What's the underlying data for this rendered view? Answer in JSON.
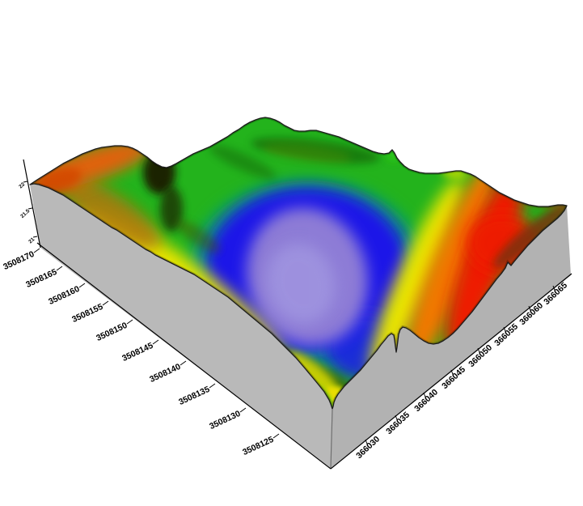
{
  "figure": {
    "background": "#ffffff",
    "title": ""
  },
  "chart_data": {
    "type": "surface",
    "subtype": "3d-terrain-block",
    "title": "",
    "xlabel": "",
    "ylabel": "",
    "zlabel": "",
    "x_axis": {
      "side": "bottom-right",
      "ticks": [
        "366030",
        "366035",
        "366040",
        "366045",
        "366050",
        "366055",
        "366060",
        "366065"
      ],
      "range": [
        366028,
        366067
      ]
    },
    "y_axis": {
      "side": "bottom-left",
      "ticks": [
        "3508170",
        "3508165",
        "3508160",
        "3508155",
        "3508150",
        "3508145",
        "3508140",
        "3508135",
        "3508130",
        "3508125"
      ],
      "range": [
        3508122,
        3508171
      ]
    },
    "z_axis": {
      "side": "upper-left-vertical",
      "ticks": [
        "22",
        "21.5",
        "21"
      ]
    },
    "colormap_low_to_high": [
      "#8d7cd6",
      "#1a15e8",
      "#0c9a78",
      "#23b31c",
      "#e8e400",
      "#f07800",
      "#ee1c00",
      "#7a3210"
    ],
    "grid": false,
    "legend": null,
    "surface_description": "Topographic 3D surface block: a central closed depression (lavender/purple lowest, ringed by deep blue) opening toward the south rim; green mid elevations across the north ridge; yellow-orange-red high ground along the northwest corner and the entire east rim; dark shaded knolls near the northwest; gray vertical walls on the visible west and south faces"
  },
  "palette": {
    "background": "#ffffff",
    "wall_west": "#b9b9b9",
    "wall_south": "#b2b2b2",
    "wall_edge": "#6f6f6f",
    "axis": "#000000",
    "outline": "#1c1c1c",
    "green_base": "#23b31c",
    "teal": "#0c9a78",
    "blue": "#1a15e8",
    "blue_drain": "#1c20e4",
    "purple": "#8d7cd6",
    "purple_light": "#a095e0",
    "yellow": "#e8e400",
    "yellow_bright": "#eede00",
    "yellow_green": "#c6dc00",
    "green_bright": "#2ecc12",
    "ochre": "#b07608",
    "orange": "#f07800",
    "orange_nw": "#e06208",
    "red_orange": "#d34a04",
    "red": "#ee1c00",
    "brown_rim": "#7a3210",
    "brown_sky": "#93470e",
    "dark_blob": "#1f1a02",
    "dark_olive": "#4a4200",
    "dark_green": "#0b4a00"
  }
}
